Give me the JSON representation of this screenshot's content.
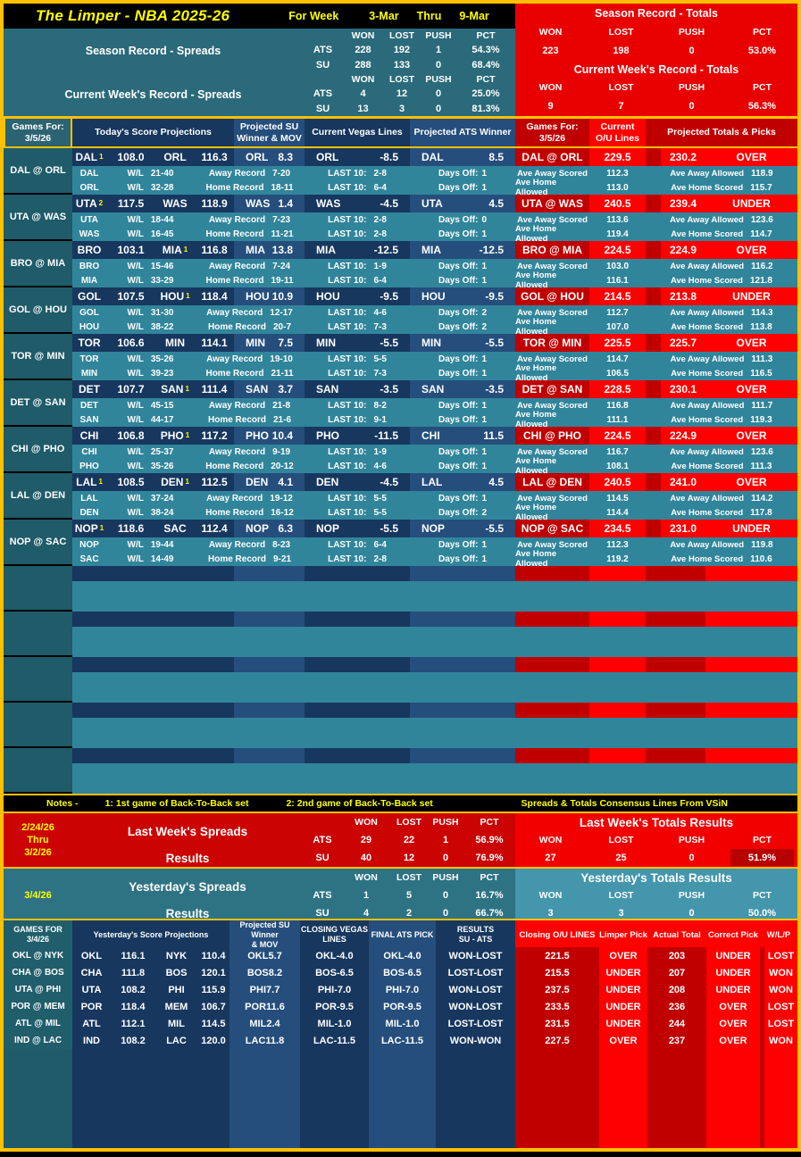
{
  "colors": {
    "gold": "#FFC000",
    "yellow": "#FFFF00",
    "navy": "#17375E",
    "medium_blue": "#254E7C",
    "teal": "#31859B",
    "dark_teal": "#1F5B69",
    "dark_red": "#C00000",
    "bright_red": "#FF0000",
    "black": "#000000"
  },
  "title_bar": {
    "title": "The Limper - NBA 2025-26",
    "for_week_label": "For Week",
    "week_start": "3-Mar",
    "thru": "Thru",
    "week_end": "9-Mar"
  },
  "records": {
    "spreads": {
      "season_label": "Season Record - Spreads",
      "week_label": "Current Week's Record - Spreads",
      "cols": [
        "WON",
        "LOST",
        "PUSH",
        "PCT"
      ],
      "season_ats": [
        "ATS",
        "228",
        "192",
        "1",
        "54.3%"
      ],
      "season_su": [
        "SU",
        "288",
        "133",
        "0",
        "68.4%"
      ],
      "week_ats": [
        "ATS",
        "4",
        "12",
        "0",
        "25.0%"
      ],
      "week_su": [
        "SU",
        "13",
        "3",
        "0",
        "81.3%"
      ]
    },
    "totals": {
      "season_label": "Season Record - Totals",
      "week_label": "Current Week's Record - Totals",
      "cols": [
        "WON",
        "LOST",
        "PUSH",
        "PCT"
      ],
      "season": [
        "223",
        "198",
        "0",
        "53.0%"
      ],
      "week": [
        "9",
        "7",
        "0",
        "56.3%"
      ]
    }
  },
  "main_table": {
    "headers": {
      "games_for": "Games For:\n3/5/26",
      "score_proj": "Today's Score Projections",
      "su_winner": "Projected SU\nWinner & MOV",
      "vegas": "Current Vegas Lines",
      "ats_winner": "Projected ATS Winner",
      "games_for2": "Games For:\n3/5/26",
      "ou_lines": "Current\nO/U Lines",
      "totals_picks": "Projected Totals & Picks"
    },
    "row_labels": {
      "wl": "W/L",
      "away_record": "Away Record",
      "home_record": "Home Record",
      "last10": "LAST 10:",
      "days_off": "Days Off:",
      "ave_away_scored": "Ave Away Scored",
      "ave_away_allowed": "Ave Away Allowed",
      "ave_home_allowed": "Ave Home Allowed",
      "ave_home_scored": "Ave Home Scored"
    },
    "games": [
      {
        "matchup": "DAL @ ORL",
        "away": {
          "abbr": "DAL",
          "sup": "1",
          "proj": "108.0",
          "wl": "21-40",
          "record": "7-20",
          "last10": "2-8",
          "days_off": "1",
          "ave_scored": "112.3",
          "ave_allowed": "118.9"
        },
        "home": {
          "abbr": "ORL",
          "sup": "",
          "proj": "116.3",
          "wl": "32-28",
          "record": "18-11",
          "last10": "6-4",
          "days_off": "1",
          "ave_allowed": "113.0",
          "ave_scored": "115.7"
        },
        "su_pick": {
          "team": "ORL",
          "mov": "8.3"
        },
        "vegas": {
          "team": "ORL",
          "line": "-8.5"
        },
        "ats_pick": {
          "team": "DAL",
          "line": "8.5"
        },
        "ou_line": "229.5",
        "proj_total": "230.2",
        "total_pick": "OVER"
      },
      {
        "matchup": "UTA @ WAS",
        "away": {
          "abbr": "UTA",
          "sup": "2",
          "proj": "117.5",
          "wl": "18-44",
          "record": "7-23",
          "last10": "2-8",
          "days_off": "0",
          "ave_scored": "113.6",
          "ave_allowed": "123.6"
        },
        "home": {
          "abbr": "WAS",
          "sup": "",
          "proj": "118.9",
          "wl": "16-45",
          "record": "11-21",
          "last10": "2-8",
          "days_off": "1",
          "ave_allowed": "119.4",
          "ave_scored": "114.7"
        },
        "su_pick": {
          "team": "WAS",
          "mov": "1.4"
        },
        "vegas": {
          "team": "WAS",
          "line": "-4.5"
        },
        "ats_pick": {
          "team": "UTA",
          "line": "4.5"
        },
        "ou_line": "240.5",
        "proj_total": "239.4",
        "total_pick": "UNDER"
      },
      {
        "matchup": "BRO @ MIA",
        "away": {
          "abbr": "BRO",
          "sup": "",
          "proj": "103.1",
          "wl": "15-46",
          "record": "7-24",
          "last10": "1-9",
          "days_off": "1",
          "ave_scored": "103.0",
          "ave_allowed": "116.2"
        },
        "home": {
          "abbr": "MIA",
          "sup": "1",
          "proj": "116.8",
          "wl": "33-29",
          "record": "19-11",
          "last10": "6-4",
          "days_off": "1",
          "ave_allowed": "116.1",
          "ave_scored": "121.8"
        },
        "su_pick": {
          "team": "MIA",
          "mov": "13.8"
        },
        "vegas": {
          "team": "MIA",
          "line": "-12.5"
        },
        "ats_pick": {
          "team": "MIA",
          "line": "-12.5"
        },
        "ou_line": "224.5",
        "proj_total": "224.9",
        "total_pick": "OVER"
      },
      {
        "matchup": "GOL @ HOU",
        "away": {
          "abbr": "GOL",
          "sup": "",
          "proj": "107.5",
          "wl": "31-30",
          "record": "12-17",
          "last10": "4-6",
          "days_off": "2",
          "ave_scored": "112.7",
          "ave_allowed": "114.3"
        },
        "home": {
          "abbr": "HOU",
          "sup": "1",
          "proj": "118.4",
          "wl": "38-22",
          "record": "20-7",
          "last10": "7-3",
          "days_off": "2",
          "ave_allowed": "107.0",
          "ave_scored": "113.8"
        },
        "su_pick": {
          "team": "HOU",
          "mov": "10.9"
        },
        "vegas": {
          "team": "HOU",
          "line": "-9.5"
        },
        "ats_pick": {
          "team": "HOU",
          "line": "-9.5"
        },
        "ou_line": "214.5",
        "proj_total": "213.8",
        "total_pick": "UNDER"
      },
      {
        "matchup": "TOR @ MIN",
        "away": {
          "abbr": "TOR",
          "sup": "",
          "proj": "106.6",
          "wl": "35-26",
          "record": "19-10",
          "last10": "5-5",
          "days_off": "1",
          "ave_scored": "114.7",
          "ave_allowed": "111.3"
        },
        "home": {
          "abbr": "MIN",
          "sup": "",
          "proj": "114.1",
          "wl": "39-23",
          "record": "21-11",
          "last10": "7-3",
          "days_off": "1",
          "ave_allowed": "106.5",
          "ave_scored": "116.5"
        },
        "su_pick": {
          "team": "MIN",
          "mov": "7.5"
        },
        "vegas": {
          "team": "MIN",
          "line": "-5.5"
        },
        "ats_pick": {
          "team": "MIN",
          "line": "-5.5"
        },
        "ou_line": "225.5",
        "proj_total": "225.7",
        "total_pick": "OVER"
      },
      {
        "matchup": "DET @ SAN",
        "away": {
          "abbr": "DET",
          "sup": "",
          "proj": "107.7",
          "wl": "45-15",
          "record": "21-8",
          "last10": "8-2",
          "days_off": "1",
          "ave_scored": "116.8",
          "ave_allowed": "111.7"
        },
        "home": {
          "abbr": "SAN",
          "sup": "1",
          "proj": "111.4",
          "wl": "44-17",
          "record": "21-6",
          "last10": "9-1",
          "days_off": "1",
          "ave_allowed": "111.1",
          "ave_scored": "119.3"
        },
        "su_pick": {
          "team": "SAN",
          "mov": "3.7"
        },
        "vegas": {
          "team": "SAN",
          "line": "-3.5"
        },
        "ats_pick": {
          "team": "SAN",
          "line": "-3.5"
        },
        "ou_line": "228.5",
        "proj_total": "230.1",
        "total_pick": "OVER"
      },
      {
        "matchup": "CHI @ PHO",
        "away": {
          "abbr": "CHI",
          "sup": "",
          "proj": "106.8",
          "wl": "25-37",
          "record": "9-19",
          "last10": "1-9",
          "days_off": "1",
          "ave_scored": "116.7",
          "ave_allowed": "123.6"
        },
        "home": {
          "abbr": "PHO",
          "sup": "1",
          "proj": "117.2",
          "wl": "35-26",
          "record": "20-12",
          "last10": "4-6",
          "days_off": "1",
          "ave_allowed": "108.1",
          "ave_scored": "111.3"
        },
        "su_pick": {
          "team": "PHO",
          "mov": "10.4"
        },
        "vegas": {
          "team": "PHO",
          "line": "-11.5"
        },
        "ats_pick": {
          "team": "CHI",
          "line": "11.5"
        },
        "ou_line": "224.5",
        "proj_total": "224.9",
        "total_pick": "OVER"
      },
      {
        "matchup": "LAL @ DEN",
        "away": {
          "abbr": "LAL",
          "sup": "1",
          "proj": "108.5",
          "wl": "37-24",
          "record": "19-12",
          "last10": "5-5",
          "days_off": "1",
          "ave_scored": "114.5",
          "ave_allowed": "114.2"
        },
        "home": {
          "abbr": "DEN",
          "sup": "1",
          "proj": "112.5",
          "wl": "38-24",
          "record": "16-12",
          "last10": "5-5",
          "days_off": "2",
          "ave_allowed": "114.4",
          "ave_scored": "117.8"
        },
        "su_pick": {
          "team": "DEN",
          "mov": "4.1"
        },
        "vegas": {
          "team": "DEN",
          "line": "-4.5"
        },
        "ats_pick": {
          "team": "LAL",
          "line": "4.5"
        },
        "ou_line": "240.5",
        "proj_total": "241.0",
        "total_pick": "OVER"
      },
      {
        "matchup": "NOP @ SAC",
        "away": {
          "abbr": "NOP",
          "sup": "1",
          "proj": "118.6",
          "wl": "19-44",
          "record": "8-23",
          "last10": "6-4",
          "days_off": "1",
          "ave_scored": "112.3",
          "ave_allowed": "119.8"
        },
        "home": {
          "abbr": "SAC",
          "sup": "",
          "proj": "112.4",
          "wl": "14-49",
          "record": "9-21",
          "last10": "2-8",
          "days_off": "1",
          "ave_allowed": "119.2",
          "ave_scored": "110.6"
        },
        "su_pick": {
          "team": "NOP",
          "mov": "6.3"
        },
        "vegas": {
          "team": "NOP",
          "line": "-5.5"
        },
        "ats_pick": {
          "team": "NOP",
          "line": "-5.5"
        },
        "ou_line": "234.5",
        "proj_total": "231.0",
        "total_pick": "UNDER"
      }
    ],
    "empty_blocks": 5
  },
  "notes": {
    "label": "Notes -",
    "note1": "1: 1st game of Back-To-Back set",
    "note2": "2: 2nd game of Back-To-Back set",
    "source": "Spreads & Totals Consensus Lines From VSiN"
  },
  "last_week": {
    "date_from": "2/24/26",
    "thru": "Thru",
    "date_to": "3/2/26",
    "spreads_label": "Last Week's Spreads",
    "results_label": "Results",
    "cols": [
      "WON",
      "LOST",
      "PUSH",
      "PCT"
    ],
    "ats_label": "ATS",
    "su_label": "SU",
    "ats": [
      "29",
      "22",
      "1",
      "56.9%"
    ],
    "su": [
      "40",
      "12",
      "0",
      "76.9%"
    ],
    "totals_label": "Last Week's Totals Results",
    "totals": [
      "27",
      "25",
      "0",
      "51.9%"
    ]
  },
  "yesterday": {
    "date": "3/4/26",
    "spreads_label": "Yesterday's Spreads",
    "results_label": "Results",
    "cols": [
      "WON",
      "LOST",
      "PUSH",
      "PCT"
    ],
    "ats_label": "ATS",
    "su_label": "SU",
    "ats": [
      "1",
      "5",
      "0",
      "16.7%"
    ],
    "su": [
      "4",
      "2",
      "0",
      "66.7%"
    ],
    "totals_label": "Yesterday's Totals Results",
    "totals": [
      "3",
      "3",
      "0",
      "50.0%"
    ]
  },
  "results_table": {
    "headers": {
      "games_for": "GAMES FOR\n3/4/26",
      "score_proj": "Yesterday's Score Projections",
      "su_winner": "Projected SU Winner\n& MOV",
      "vegas": "CLOSING VEGAS\nLINES",
      "final_ats": "FINAL ATS PICK",
      "results": "RESULTS\nSU - ATS",
      "closing_ou": "Closing O/U LINES",
      "limper_pick": "Limper Pick",
      "actual_total": "Actual Total",
      "correct_pick": "Correct Pick",
      "wlp": "W/L/P"
    },
    "games": [
      {
        "matchup": "OKL @ NYK",
        "away_abbr": "OKL",
        "away_proj": "116.1",
        "home_abbr": "NYK",
        "home_proj": "110.4",
        "su_pick": {
          "team": "OKL",
          "mov": "5.7"
        },
        "vegas": {
          "team": "OKL",
          "line": "-4.0"
        },
        "final_ats": {
          "team": "OKL",
          "line": "-4.0"
        },
        "result": "WON-LOST",
        "closing_ou": "221.5",
        "limper_pick": "OVER",
        "actual_total": "203",
        "correct_pick": "UNDER",
        "wlp": "LOST"
      },
      {
        "matchup": "CHA @ BOS",
        "away_abbr": "CHA",
        "away_proj": "111.8",
        "home_abbr": "BOS",
        "home_proj": "120.1",
        "su_pick": {
          "team": "BOS",
          "mov": "8.2"
        },
        "vegas": {
          "team": "BOS",
          "line": "-6.5"
        },
        "final_ats": {
          "team": "BOS",
          "line": "-6.5"
        },
        "result": "LOST-LOST",
        "closing_ou": "215.5",
        "limper_pick": "UNDER",
        "actual_total": "207",
        "correct_pick": "UNDER",
        "wlp": "WON"
      },
      {
        "matchup": "UTA @ PHI",
        "away_abbr": "UTA",
        "away_proj": "108.2",
        "home_abbr": "PHI",
        "home_proj": "115.9",
        "su_pick": {
          "team": "PHI",
          "mov": "7.7"
        },
        "vegas": {
          "team": "PHI",
          "line": "-7.0"
        },
        "final_ats": {
          "team": "PHI",
          "line": "-7.0"
        },
        "result": "WON-LOST",
        "closing_ou": "237.5",
        "limper_pick": "UNDER",
        "actual_total": "208",
        "correct_pick": "UNDER",
        "wlp": "WON"
      },
      {
        "matchup": "POR @ MEM",
        "away_abbr": "POR",
        "away_proj": "118.4",
        "home_abbr": "MEM",
        "home_proj": "106.7",
        "su_pick": {
          "team": "POR",
          "mov": "11.6"
        },
        "vegas": {
          "team": "POR",
          "line": "-9.5"
        },
        "final_ats": {
          "team": "POR",
          "line": "-9.5"
        },
        "result": "WON-LOST",
        "closing_ou": "233.5",
        "limper_pick": "UNDER",
        "actual_total": "236",
        "correct_pick": "OVER",
        "wlp": "LOST"
      },
      {
        "matchup": "ATL @ MIL",
        "away_abbr": "ATL",
        "away_proj": "112.1",
        "home_abbr": "MIL",
        "home_proj": "114.5",
        "su_pick": {
          "team": "MIL",
          "mov": "2.4"
        },
        "vegas": {
          "team": "MIL",
          "line": "-1.0"
        },
        "final_ats": {
          "team": "MIL",
          "line": "-1.0"
        },
        "result": "LOST-LOST",
        "closing_ou": "231.5",
        "limper_pick": "UNDER",
        "actual_total": "244",
        "correct_pick": "OVER",
        "wlp": "LOST"
      },
      {
        "matchup": "IND @ LAC",
        "away_abbr": "IND",
        "away_proj": "108.2",
        "home_abbr": "LAC",
        "home_proj": "120.0",
        "su_pick": {
          "team": "LAC",
          "mov": "11.8"
        },
        "vegas": {
          "team": "LAC",
          "line": "-11.5"
        },
        "final_ats": {
          "team": "LAC",
          "line": "-11.5"
        },
        "result": "WON-WON",
        "closing_ou": "227.5",
        "limper_pick": "OVER",
        "actual_total": "237",
        "correct_pick": "OVER",
        "wlp": "WON"
      }
    ]
  }
}
